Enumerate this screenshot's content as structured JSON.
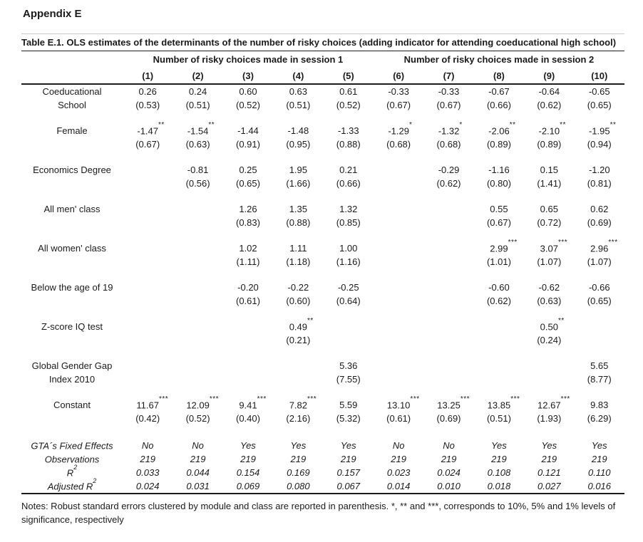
{
  "page": {
    "appendix_title": "Appendix E",
    "table_title": "Table E.1. OLS estimates of the determinants of the number of risky choices (adding indicator for attending coeducational high school)",
    "notes": "Notes: Robust standard errors clustered by module and class are reported in parenthesis. *, ** and ***, corresponds to 10%, 5% and 1% levels of significance, respectively"
  },
  "table": {
    "group_headers": [
      {
        "label": "Number of risky choices made in session 1",
        "span": 5
      },
      {
        "label": "Number of risky choices made in session 2",
        "span": 5
      }
    ],
    "column_numbers": [
      "(1)",
      "(2)",
      "(3)",
      "(4)",
      "(5)",
      "(6)",
      "(7)",
      "(8)",
      "(9)",
      "(10)"
    ],
    "variables": [
      {
        "label_lines": [
          "Coeducational",
          "School"
        ],
        "coefs": [
          "0.26",
          "0.24",
          "0.60",
          "0.63",
          "0.61",
          "-0.33",
          "-0.33",
          "-0.67",
          "-0.64",
          "-0.65"
        ],
        "stars": [
          "",
          "",
          "",
          "",
          "",
          "",
          "",
          "",
          "",
          ""
        ],
        "ses": [
          "(0.53)",
          "(0.51)",
          "(0.52)",
          "(0.51)",
          "(0.52)",
          "(0.67)",
          "(0.67)",
          "(0.66)",
          "(0.62)",
          "(0.65)"
        ]
      },
      {
        "label_lines": [
          "Female"
        ],
        "coefs": [
          "-1.47",
          "-1.54",
          "-1.44",
          "-1.48",
          "-1.33",
          "-1.29",
          "-1.32",
          "-2.06",
          "-2.10",
          "-1.95"
        ],
        "stars": [
          "**",
          "**",
          "",
          "",
          "",
          "*",
          "*",
          "**",
          "**",
          "**"
        ],
        "ses": [
          "(0.67)",
          "(0.63)",
          "(0.91)",
          "(0.95)",
          "(0.88)",
          "(0.68)",
          "(0.68)",
          "(0.89)",
          "(0.89)",
          "(0.94)"
        ]
      },
      {
        "label_lines": [
          "Economics Degree"
        ],
        "coefs": [
          "",
          "-0.81",
          "0.25",
          "1.95",
          "0.21",
          "",
          "-0.29",
          "-1.16",
          "0.15",
          "-1.20"
        ],
        "stars": [
          "",
          "",
          "",
          "",
          "",
          "",
          "",
          "",
          "",
          ""
        ],
        "ses": [
          "",
          "(0.56)",
          "(0.65)",
          "(1.66)",
          "(0.66)",
          "",
          "(0.62)",
          "(0.80)",
          "(1.41)",
          "(0.81)"
        ]
      },
      {
        "label_lines": [
          "All men' class"
        ],
        "coefs": [
          "",
          "",
          "1.26",
          "1.35",
          "1.32",
          "",
          "",
          "0.55",
          "0.65",
          "0.62"
        ],
        "stars": [
          "",
          "",
          "",
          "",
          "",
          "",
          "",
          "",
          "",
          ""
        ],
        "ses": [
          "",
          "",
          "(0.83)",
          "(0.88)",
          "(0.85)",
          "",
          "",
          "(0.67)",
          "(0.72)",
          "(0.69)"
        ]
      },
      {
        "label_lines": [
          "All women' class"
        ],
        "coefs": [
          "",
          "",
          "1.02",
          "1.11",
          "1.00",
          "",
          "",
          "2.99",
          "3.07",
          "2.96"
        ],
        "stars": [
          "",
          "",
          "",
          "",
          "",
          "",
          "",
          "***",
          "***",
          "***"
        ],
        "ses": [
          "",
          "",
          "(1.11)",
          "(1.18)",
          "(1.16)",
          "",
          "",
          "(1.01)",
          "(1.07)",
          "(1.07)"
        ]
      },
      {
        "label_lines": [
          "Below the age of 19"
        ],
        "coefs": [
          "",
          "",
          "-0.20",
          "-0.22",
          "-0.25",
          "",
          "",
          "-0.60",
          "-0.62",
          "-0.66"
        ],
        "stars": [
          "",
          "",
          "",
          "",
          "",
          "",
          "",
          "",
          "",
          ""
        ],
        "ses": [
          "",
          "",
          "(0.61)",
          "(0.60)",
          "(0.64)",
          "",
          "",
          "(0.62)",
          "(0.63)",
          "(0.65)"
        ]
      },
      {
        "label_lines": [
          "Z-score IQ test"
        ],
        "coefs": [
          "",
          "",
          "",
          "0.49",
          "",
          "",
          "",
          "",
          "0.50",
          ""
        ],
        "stars": [
          "",
          "",
          "",
          "**",
          "",
          "",
          "",
          "",
          "**",
          ""
        ],
        "ses": [
          "",
          "",
          "",
          "(0.21)",
          "",
          "",
          "",
          "",
          "(0.24)",
          ""
        ]
      },
      {
        "label_lines": [
          "Global Gender Gap",
          "Index 2010"
        ],
        "coefs": [
          "",
          "",
          "",
          "",
          "5.36",
          "",
          "",
          "",
          "",
          "5.65"
        ],
        "stars": [
          "",
          "",
          "",
          "",
          "",
          "",
          "",
          "",
          "",
          ""
        ],
        "ses": [
          "",
          "",
          "",
          "",
          "(7.55)",
          "",
          "",
          "",
          "",
          "(8.77)"
        ]
      },
      {
        "label_lines": [
          "Constant"
        ],
        "coefs": [
          "11.67",
          "12.09",
          "9.41",
          "7.82",
          "5.59",
          "13.10",
          "13.25",
          "13.85",
          "12.67",
          "9.83"
        ],
        "stars": [
          "***",
          "***",
          "***",
          "***",
          "",
          "***",
          "***",
          "***",
          "***",
          ""
        ],
        "ses": [
          "(0.42)",
          "(0.52)",
          "(0.40)",
          "(2.16)",
          "(5.32)",
          "(0.61)",
          "(0.69)",
          "(0.51)",
          "(1.93)",
          "(6.29)"
        ]
      }
    ],
    "stats_rows": [
      {
        "label": "GTA´s Fixed Effects",
        "values": [
          "No",
          "No",
          "Yes",
          "Yes",
          "Yes",
          "No",
          "No",
          "Yes",
          "Yes",
          "Yes"
        ]
      },
      {
        "label": "Observations",
        "values": [
          "219",
          "219",
          "219",
          "219",
          "219",
          "219",
          "219",
          "219",
          "219",
          "219"
        ]
      },
      {
        "label": "R",
        "sup": "2",
        "values": [
          "0.033",
          "0.044",
          "0.154",
          "0.169",
          "0.157",
          "0.023",
          "0.024",
          "0.108",
          "0.121",
          "0.110"
        ]
      },
      {
        "label": "Adjusted R",
        "sup": "2",
        "values": [
          "0.024",
          "0.031",
          "0.069",
          "0.080",
          "0.067",
          "0.014",
          "0.010",
          "0.018",
          "0.027",
          "0.016"
        ]
      }
    ]
  }
}
